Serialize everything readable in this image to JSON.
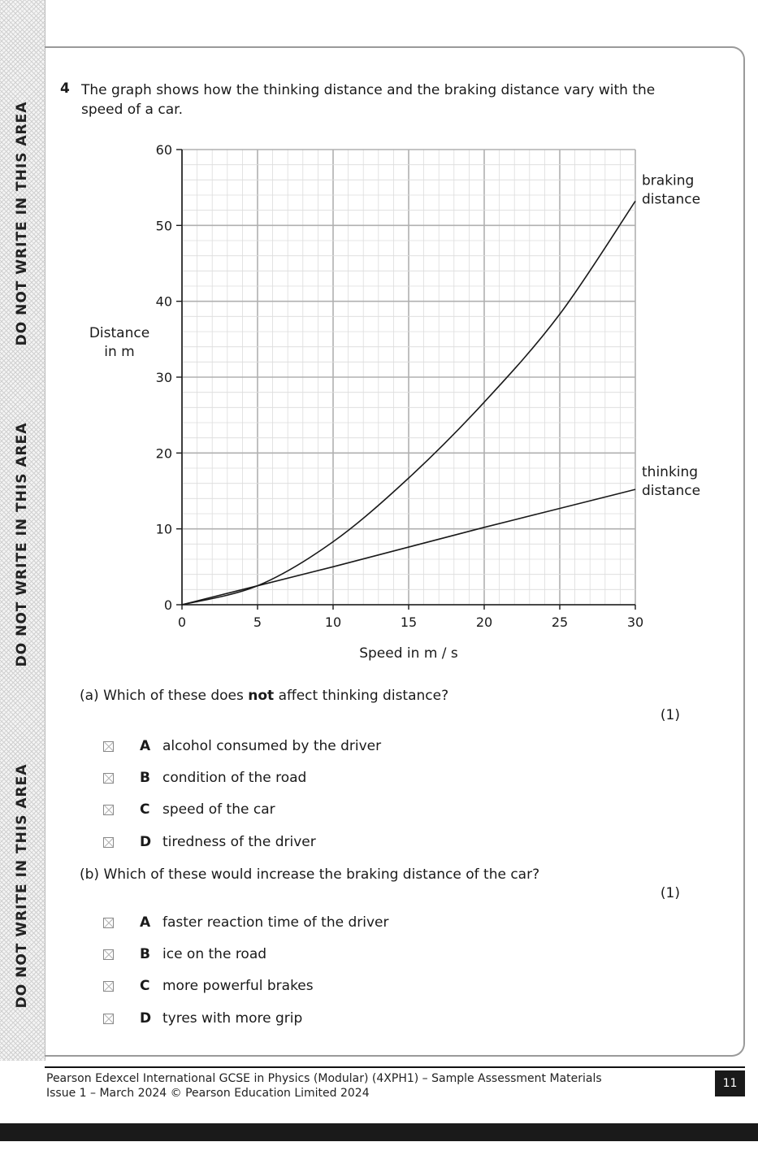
{
  "margin": {
    "notice_1": "DO NOT WRITE IN THIS AREA",
    "notice_2": "DO NOT WRITE IN THIS AREA",
    "notice_3": "DO NOT WRITE IN THIS AREA"
  },
  "question": {
    "number": "4",
    "stem": "The graph shows how the thinking distance and the braking distance vary with the speed of a car."
  },
  "chart_data": {
    "type": "line",
    "title": "",
    "xlabel": "Speed in m / s",
    "ylabel_line1": "Distance",
    "ylabel_line2": "in m",
    "xlim": [
      0,
      30
    ],
    "ylim": [
      0,
      60
    ],
    "x_ticks": [
      0,
      5,
      10,
      15,
      20,
      25,
      30
    ],
    "y_ticks": [
      0,
      10,
      20,
      30,
      40,
      50,
      60
    ],
    "grid": true,
    "series": [
      {
        "name_line1": "braking",
        "name_line2": "distance",
        "x": [
          0,
          5,
          10,
          15,
          20,
          25,
          30
        ],
        "y": [
          0,
          2.5,
          8.3,
          16.7,
          26.7,
          38.3,
          53.2
        ]
      },
      {
        "name_line1": "thinking",
        "name_line2": "distance",
        "x": [
          0,
          5,
          10,
          15,
          20,
          25,
          30
        ],
        "y": [
          0,
          2.5,
          5.0,
          7.6,
          10.2,
          12.7,
          15.2
        ]
      }
    ]
  },
  "part_a": {
    "label": "(a)",
    "text_before": "Which of these does ",
    "text_bold": "not",
    "text_after": " affect thinking distance?",
    "marks": "(1)",
    "options": [
      {
        "letter": "A",
        "text": "alcohol consumed by the driver"
      },
      {
        "letter": "B",
        "text": "condition of the road"
      },
      {
        "letter": "C",
        "text": "speed of the car"
      },
      {
        "letter": "D",
        "text": "tiredness of the driver"
      }
    ]
  },
  "part_b": {
    "label": "(b)",
    "text": "Which of these would increase the braking distance of the car?",
    "marks": "(1)",
    "options": [
      {
        "letter": "A",
        "text": "faster reaction time of the driver"
      },
      {
        "letter": "B",
        "text": "ice on the road"
      },
      {
        "letter": "C",
        "text": "more powerful brakes"
      },
      {
        "letter": "D",
        "text": "tyres with more grip"
      }
    ]
  },
  "footer": {
    "line1": "Pearson Edexcel International GCSE in Physics (Modular) (4XPH1) – Sample Assessment Materials",
    "line2": "Issue 1 – March 2024 © Pearson Education Limited 2024",
    "page_number": "11"
  },
  "colors": {
    "ink": "#1a1a1a",
    "grid_major": "#b0b0b0",
    "grid_minor": "#dcdcdc"
  }
}
